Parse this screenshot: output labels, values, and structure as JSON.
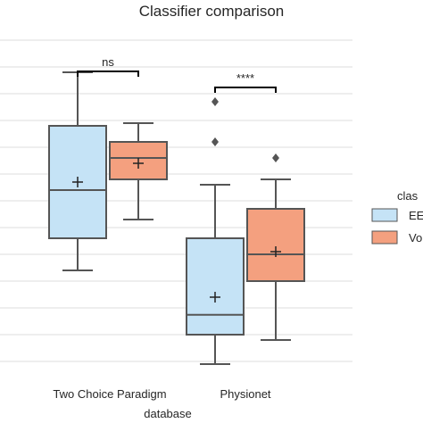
{
  "chart_data": {
    "type": "box",
    "title": "Classifier comparison",
    "xlabel": "database",
    "ylabel": "",
    "categories": [
      "Two Choice Paradigm",
      "Physionet"
    ],
    "ylim": [
      0.35,
      1.0
    ],
    "grid": "horizontal",
    "series": [
      {
        "name": "EE",
        "color": "#c5e3f6",
        "boxes": [
          {
            "whisker_low": 0.57,
            "q1": 0.63,
            "median": 0.72,
            "q3": 0.84,
            "whisker_high": 0.94,
            "mean": 0.735,
            "outliers": []
          },
          {
            "whisker_low": 0.395,
            "q1": 0.45,
            "median": 0.487,
            "q3": 0.63,
            "whisker_high": 0.73,
            "mean": 0.52,
            "outliers": [
              0.885,
              0.81
            ]
          }
        ]
      },
      {
        "name": "Vo",
        "color": "#f4a07f",
        "boxes": [
          {
            "whisker_low": 0.665,
            "q1": 0.74,
            "median": 0.78,
            "q3": 0.81,
            "whisker_high": 0.845,
            "mean": 0.77,
            "outliers": []
          },
          {
            "whisker_low": 0.44,
            "q1": 0.55,
            "median": 0.6,
            "q3": 0.685,
            "whisker_high": 0.74,
            "mean": 0.605,
            "outliers": [
              0.78
            ]
          }
        ]
      }
    ],
    "significance": [
      {
        "category": "Two Choice Paradigm",
        "label": "ns"
      },
      {
        "category": "Physionet",
        "label": "****"
      }
    ],
    "legend": {
      "title": "clas",
      "position": "right"
    }
  }
}
